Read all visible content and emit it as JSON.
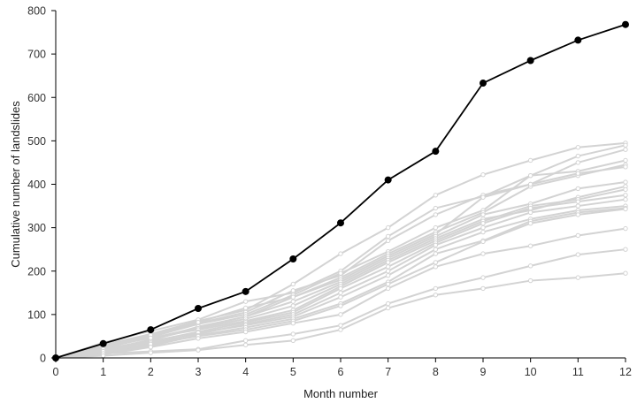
{
  "chart_data": {
    "type": "line",
    "xlabel": "Month number",
    "ylabel": "Cumulative number of landslides",
    "xlim": [
      0,
      12
    ],
    "ylim": [
      0,
      800
    ],
    "x": [
      0,
      1,
      2,
      3,
      4,
      5,
      6,
      7,
      8,
      9,
      10,
      11,
      12
    ],
    "x_ticks": [
      "0",
      "1",
      "2",
      "3",
      "4",
      "5",
      "6",
      "7",
      "8",
      "9",
      "10",
      "11",
      "12"
    ],
    "y_ticks": [
      "0",
      "100",
      "200",
      "300",
      "400",
      "500",
      "600",
      "700",
      "800"
    ],
    "grid": false,
    "legend": "none",
    "colors": {
      "highlight": "#000000",
      "background_series": "#d3d3d3"
    },
    "highlight_series": {
      "values": [
        0,
        33,
        65,
        114,
        153,
        228,
        311,
        410,
        476,
        633,
        685,
        732,
        768
      ]
    },
    "background_series": [
      {
        "values": [
          0,
          30,
          55,
          85,
          110,
          170,
          240,
          300,
          375,
          422,
          455,
          485,
          495
        ]
      },
      {
        "values": [
          0,
          35,
          62,
          88,
          130,
          150,
          200,
          280,
          345,
          372,
          420,
          465,
          490
        ]
      },
      {
        "values": [
          0,
          28,
          50,
          80,
          105,
          155,
          190,
          270,
          330,
          375,
          400,
          450,
          480
        ]
      },
      {
        "values": [
          0,
          22,
          48,
          78,
          100,
          145,
          195,
          245,
          300,
          340,
          420,
          430,
          455
        ]
      },
      {
        "values": [
          0,
          25,
          52,
          82,
          115,
          140,
          185,
          240,
          290,
          335,
          395,
          420,
          445
        ]
      },
      {
        "values": [
          0,
          30,
          45,
          70,
          95,
          140,
          180,
          235,
          285,
          370,
          400,
          425,
          440
        ]
      },
      {
        "values": [
          0,
          20,
          40,
          72,
          95,
          130,
          175,
          230,
          280,
          330,
          355,
          390,
          405
        ]
      },
      {
        "values": [
          0,
          18,
          42,
          68,
          90,
          120,
          170,
          225,
          275,
          320,
          340,
          370,
          395
        ]
      },
      {
        "values": [
          0,
          24,
          46,
          65,
          85,
          110,
          165,
          220,
          270,
          315,
          350,
          365,
          388
        ]
      },
      {
        "values": [
          0,
          15,
          38,
          60,
          82,
          105,
          160,
          210,
          265,
          310,
          345,
          360,
          375
        ]
      },
      {
        "values": [
          0,
          20,
          35,
          55,
          78,
          100,
          150,
          200,
          260,
          300,
          335,
          350,
          365
        ]
      },
      {
        "values": [
          0,
          12,
          30,
          58,
          75,
          95,
          140,
          190,
          250,
          290,
          320,
          340,
          350
        ]
      },
      {
        "values": [
          0,
          10,
          28,
          52,
          70,
          90,
          125,
          175,
          240,
          270,
          315,
          335,
          345
        ]
      },
      {
        "values": [
          0,
          15,
          32,
          50,
          65,
          85,
          120,
          170,
          220,
          268,
          310,
          330,
          343
        ]
      },
      {
        "values": [
          0,
          8,
          25,
          45,
          60,
          80,
          100,
          160,
          210,
          240,
          258,
          282,
          298
        ]
      },
      {
        "values": [
          0,
          10,
          15,
          20,
          40,
          55,
          75,
          125,
          160,
          185,
          212,
          238,
          250
        ]
      },
      {
        "values": [
          0,
          5,
          12,
          18,
          30,
          40,
          65,
          115,
          145,
          160,
          178,
          185,
          195
        ]
      }
    ]
  }
}
